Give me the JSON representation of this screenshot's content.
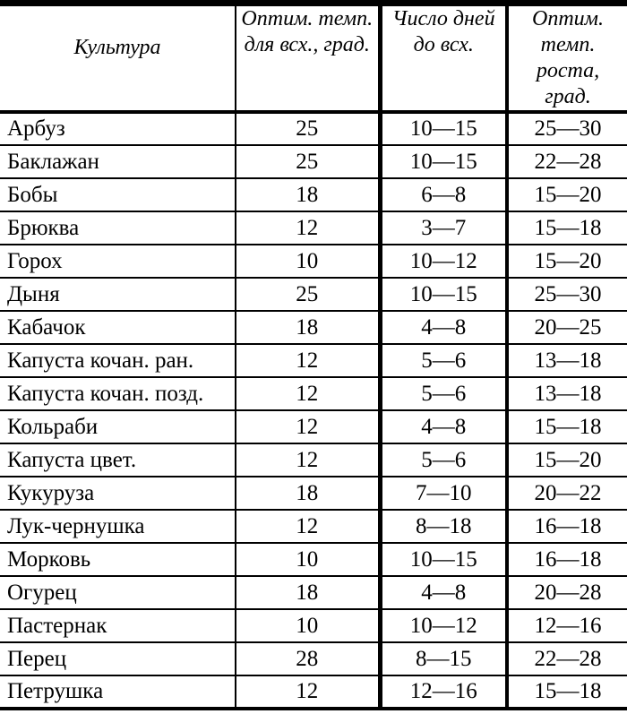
{
  "page": {
    "background_color": "#ffffff",
    "ink_color": "#000000"
  },
  "table": {
    "headers": [
      {
        "name": "culture",
        "lines": [
          "Культура"
        ]
      },
      {
        "name": "germination-temp",
        "lines": [
          "Оптим. темп.",
          "для всх., град."
        ]
      },
      {
        "name": "days-to-germination",
        "lines": [
          "Число дней",
          "до всх."
        ]
      },
      {
        "name": "growth-temp",
        "lines": [
          "Оптим.",
          "темп.",
          "роста,",
          "град."
        ]
      }
    ],
    "rows": [
      [
        "Арбуз",
        "25",
        "10—15",
        "25—30"
      ],
      [
        "Баклажан",
        "25",
        "10—15",
        "22—28"
      ],
      [
        "Бобы",
        "18",
        "6—8",
        "15—20"
      ],
      [
        "Брюква",
        "12",
        "3—7",
        "15—18"
      ],
      [
        "Горох",
        "10",
        "10—12",
        "15—20"
      ],
      [
        "Дыня",
        "25",
        "10—15",
        "25—30"
      ],
      [
        "Кабачок",
        "18",
        "4—8",
        "20—25"
      ],
      [
        "Капуста кочан. ран.",
        "12",
        "5—6",
        "13—18"
      ],
      [
        "Капуста кочан. позд.",
        "12",
        "5—6",
        "13—18"
      ],
      [
        "Кольраби",
        "12",
        "4—8",
        "15—18"
      ],
      [
        "Капуста цвет.",
        "12",
        "5—6",
        "15—20"
      ],
      [
        "Кукуруза",
        "18",
        "7—10",
        "20—22"
      ],
      [
        "Лук-чернушка",
        "12",
        "8—18",
        "16—18"
      ],
      [
        "Морковь",
        "10",
        "10—15",
        "16—18"
      ],
      [
        "Огурец",
        "18",
        "4—8",
        "20—28"
      ],
      [
        "Пастернак",
        "10",
        "10—12",
        "12—16"
      ],
      [
        "Перец",
        "28",
        "8—15",
        "22—28"
      ],
      [
        "Петрушка",
        "12",
        "12—16",
        "15—18"
      ]
    ]
  }
}
